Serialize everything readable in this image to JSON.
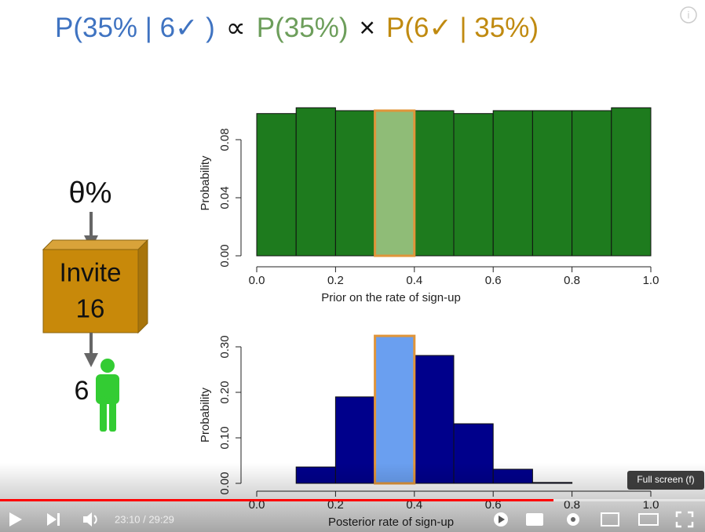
{
  "formula": [
    {
      "text": "P(35% | 6✓ )",
      "color": "#3f73c1"
    },
    {
      "text": "∝",
      "color": "#111111"
    },
    {
      "text": "P(35%)",
      "color": "#6d9e5b"
    },
    {
      "text": "×",
      "color": "#111111"
    },
    {
      "text": "P(6✓  | 35%)",
      "color": "#c08a10"
    }
  ],
  "diagram": {
    "rate": "θ%",
    "box_line1": "Invite",
    "box_line2": "16",
    "result": "6"
  },
  "chart_data": [
    {
      "type": "histogram",
      "xlabel": "Prior on the rate of sign-up",
      "ylabel": "Probability",
      "bins": [
        0,
        0.1,
        0.2,
        0.3,
        0.4,
        0.5,
        0.6,
        0.7,
        0.8,
        0.9,
        1.0
      ],
      "values": [
        0.098,
        0.102,
        0.1,
        0.1,
        0.1,
        0.098,
        0.1,
        0.1,
        0.1,
        0.102
      ],
      "colors": [
        "#1e7b1e",
        "#1e7b1e",
        "#1e7b1e",
        "#8fbc77",
        "#1e7b1e",
        "#1e7b1e",
        "#1e7b1e",
        "#1e7b1e",
        "#1e7b1e",
        "#1e7b1e"
      ],
      "edgecolors": [
        "#111111",
        "#111111",
        "#111111",
        "#e0953a",
        "#111111",
        "#111111",
        "#111111",
        "#111111",
        "#111111",
        "#111111"
      ],
      "xlim": [
        0,
        1
      ],
      "ylim": [
        0,
        0.1
      ],
      "xticks": [
        {
          "value": 0,
          "label": "0.0"
        },
        {
          "value": 0.2,
          "label": "0.2"
        },
        {
          "value": 0.4,
          "label": "0.4"
        },
        {
          "value": 0.6,
          "label": "0.6"
        },
        {
          "value": 0.8,
          "label": "0.8"
        },
        {
          "value": 1,
          "label": "1.0"
        }
      ],
      "yticks": [
        {
          "value": 0,
          "label": "0.00"
        },
        {
          "value": 0.04,
          "label": "0.04"
        },
        {
          "value": 0.08,
          "label": "0.08"
        }
      ]
    },
    {
      "type": "histogram",
      "xlabel": "Posterior rate of sign-up",
      "ylabel": "Probability",
      "bins": [
        0,
        0.1,
        0.2,
        0.3,
        0.4,
        0.5,
        0.6,
        0.7,
        0.8,
        0.9,
        1.0
      ],
      "values": [
        0,
        0.036,
        0.19,
        0.324,
        0.281,
        0.131,
        0.031,
        0.002,
        0,
        0
      ],
      "colors": [
        "#00008b",
        "#00008b",
        "#00008b",
        "#6a9ff0",
        "#00008b",
        "#00008b",
        "#00008b",
        "#00008b",
        "#00008b",
        "#00008b"
      ],
      "edgecolors": [
        "#111111",
        "#111111",
        "#111111",
        "#e0953a",
        "#111111",
        "#111111",
        "#111111",
        "#111111",
        "#111111",
        "#111111"
      ],
      "xlim": [
        0,
        1
      ],
      "ylim": [
        0,
        0.3
      ],
      "xticks": [
        {
          "value": 0,
          "label": "0.0"
        },
        {
          "value": 0.2,
          "label": "0.2"
        },
        {
          "value": 0.4,
          "label": "0.4"
        },
        {
          "value": 0.6,
          "label": "0.6"
        },
        {
          "value": 0.8,
          "label": "0.8"
        },
        {
          "value": 1,
          "label": "1.0"
        }
      ],
      "yticks": [
        {
          "value": 0,
          "label": "0.00"
        },
        {
          "value": 0.1,
          "label": "0.10"
        },
        {
          "value": 0.2,
          "label": "0.20"
        },
        {
          "value": 0.3,
          "label": "0.30"
        }
      ]
    }
  ],
  "player": {
    "time": "23:10 / 29:29",
    "tooltip": "Full screen (f)"
  }
}
